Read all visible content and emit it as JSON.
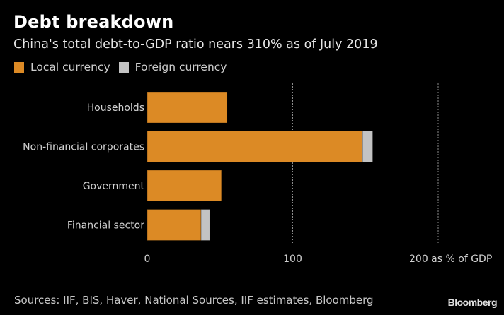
{
  "chart_data": {
    "type": "bar",
    "orientation": "horizontal",
    "stacked": true,
    "title": "Debt breakdown",
    "subtitle": "China's total debt-to-GDP ratio nears 310% as of July 2019",
    "categories": [
      "Households",
      "Non-financial corporates",
      "Government",
      "Financial sector"
    ],
    "series": [
      {
        "name": "Local currency",
        "color": "#dc8a25",
        "values": [
          55,
          148,
          51,
          37
        ]
      },
      {
        "name": "Foreign currency",
        "color": "#c3c3c3",
        "values": [
          0,
          7,
          0,
          6
        ]
      }
    ],
    "xlabel": "as % of GDP",
    "ylabel": "",
    "xlim": [
      0,
      230
    ],
    "xticks": [
      0,
      100,
      200
    ],
    "xtick_labels": [
      "0",
      "100",
      "200 as % of GDP"
    ],
    "grid": "vertical dotted",
    "legend_position": "top-left"
  },
  "footer": {
    "source": "Sources: IIF, BIS, Haver, National Sources, IIF estimates, Bloomberg",
    "brand": "Bloomberg"
  }
}
